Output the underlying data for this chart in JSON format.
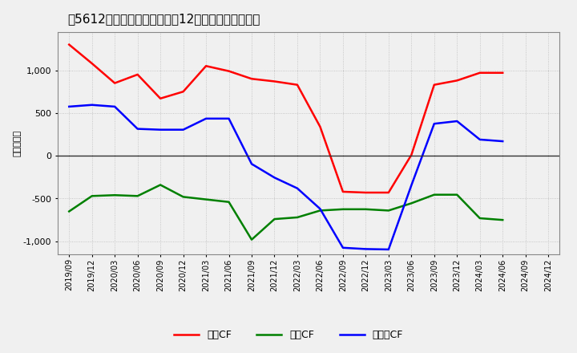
{
  "title2": "[5612]　キャッシュフローの12か月移動合計の推移",
  "ylabel": "（百万円）",
  "x_labels": [
    "2019/09",
    "2019/12",
    "2020/03",
    "2020/06",
    "2020/09",
    "2020/12",
    "2021/03",
    "2021/06",
    "2021/09",
    "2021/12",
    "2022/03",
    "2022/06",
    "2022/09",
    "2022/12",
    "2023/03",
    "2023/06",
    "2023/09",
    "2023/12",
    "2024/03",
    "2024/06",
    "2024/09",
    "2024/12"
  ],
  "eigyo_cf": [
    1300,
    1080,
    850,
    950,
    670,
    750,
    1050,
    990,
    900,
    870,
    830,
    340,
    -420,
    -430,
    -430,
    10,
    830,
    880,
    970,
    970,
    null,
    null
  ],
  "toshi_cf": [
    -650,
    -470,
    -460,
    -470,
    -340,
    -480,
    -510,
    -540,
    -980,
    -740,
    -720,
    -640,
    -625,
    -625,
    -640,
    -555,
    -455,
    -455,
    -730,
    -750,
    null,
    null
  ],
  "free_cf": [
    575,
    595,
    575,
    315,
    305,
    305,
    435,
    435,
    -95,
    -255,
    -380,
    -620,
    -1075,
    -1090,
    -1095,
    -345,
    375,
    405,
    190,
    170,
    null,
    null
  ],
  "line_colors": {
    "eigyo": "#ff0000",
    "toshi": "#008000",
    "free": "#0000ff"
  },
  "ylim": [
    -1150,
    1450
  ],
  "yticks": [
    -1000,
    -500,
    0,
    500,
    1000
  ],
  "background_color": "#f0f0f0",
  "plot_bg_color": "#f0f0f0",
  "grid_color": "#bbbbbb",
  "zero_line_color": "#333333",
  "title_fontsize": 11,
  "axis_fontsize": 7,
  "ylabel_fontsize": 8,
  "legend_labels": [
    "営業CF",
    "投資CF",
    "フリーCF"
  ]
}
